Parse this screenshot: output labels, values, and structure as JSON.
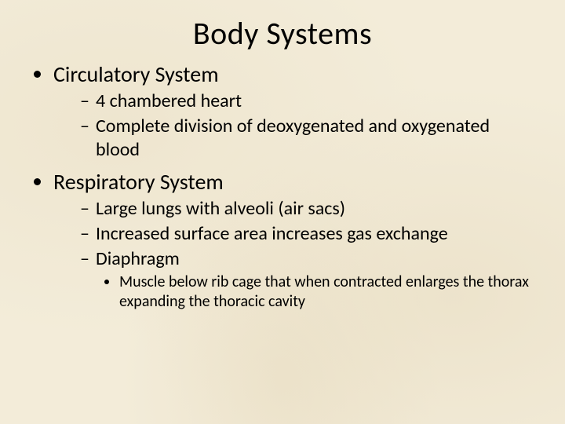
{
  "slide": {
    "title": "Body Systems",
    "background_color": "#f3ecd9",
    "text_color": "#000000",
    "title_fontsize": 40,
    "l1_fontsize": 28,
    "l2_fontsize": 24,
    "l3_fontsize": 20,
    "bullets": [
      {
        "text": "Circulatory System",
        "sub": [
          {
            "text": "4 chambered heart"
          },
          {
            "text": "Complete division of deoxygenated and oxygenated blood"
          }
        ]
      },
      {
        "text": "Respiratory System",
        "sub": [
          {
            "text": "Large lungs with alveoli (air sacs)"
          },
          {
            "text": "Increased surface area increases gas exchange"
          },
          {
            "text": "Diaphragm",
            "sub": [
              {
                "text": "Muscle below rib cage that when contracted enlarges the thorax expanding the thoracic cavity"
              }
            ]
          }
        ]
      }
    ]
  }
}
